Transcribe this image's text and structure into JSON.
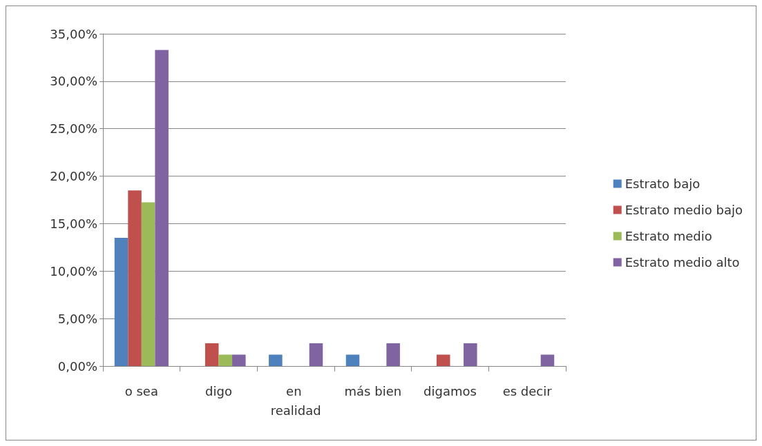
{
  "chart_data": {
    "type": "bar",
    "categories": [
      "o sea",
      "digo",
      "en realidad",
      "más bien",
      "digamos",
      "es decir"
    ],
    "series": [
      {
        "name": "Estrato bajo",
        "color": "#4f81bd",
        "values": [
          13.5,
          0,
          1.2,
          1.2,
          0,
          0
        ]
      },
      {
        "name": "Estrato medio bajo",
        "color": "#c0504d",
        "values": [
          18.5,
          2.4,
          0,
          0,
          1.2,
          0
        ]
      },
      {
        "name": "Estrato medio",
        "color": "#9bbb59",
        "values": [
          17.25,
          1.2,
          0,
          0,
          0,
          0
        ]
      },
      {
        "name": "Estrato medio alto",
        "color": "#8064a2",
        "values": [
          33.3,
          1.2,
          2.4,
          2.4,
          2.4,
          1.2
        ]
      }
    ],
    "ylim": [
      0,
      35
    ],
    "yticks": [
      {
        "value": 0,
        "label": "0,00%"
      },
      {
        "value": 5,
        "label": "5,00%"
      },
      {
        "value": 10,
        "label": "10,00%"
      },
      {
        "value": 15,
        "label": "15,00%"
      },
      {
        "value": 20,
        "label": "20,00%"
      },
      {
        "value": 25,
        "label": "25,00%"
      },
      {
        "value": 30,
        "label": "30,00%"
      },
      {
        "value": 35,
        "label": "35,00%"
      }
    ],
    "grid": "y",
    "legend": "right"
  }
}
